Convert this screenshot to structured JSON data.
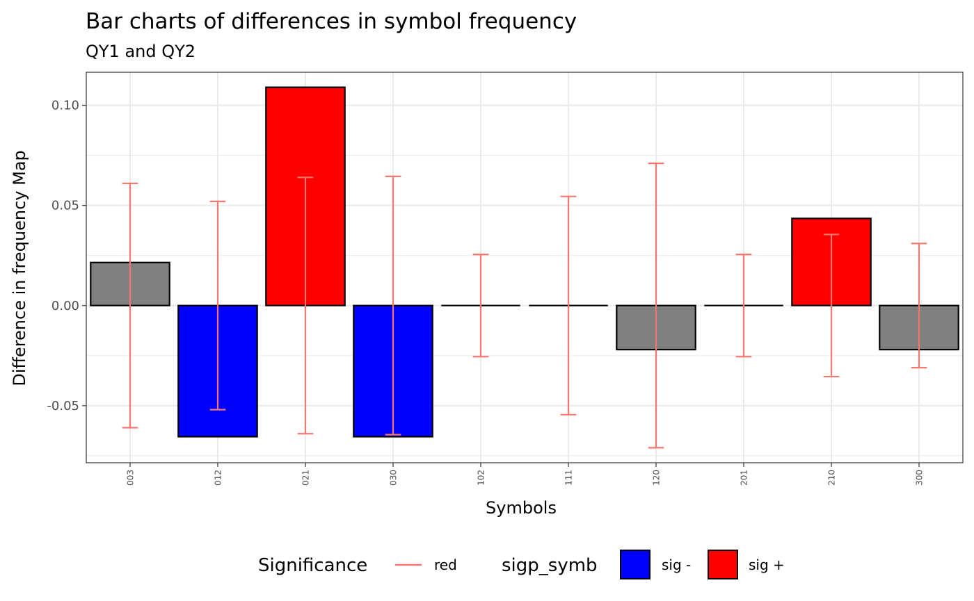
{
  "chart_data": {
    "type": "bar",
    "title": "Bar charts of differences in symbol frequency",
    "subtitle": "QY1 and QY2",
    "xlabel": "Symbols",
    "ylabel": "Difference in frequency Map",
    "ylim": [
      -0.0785,
      0.1165
    ],
    "yticks": [
      -0.05,
      0.0,
      0.05,
      0.1
    ],
    "ytick_labels": [
      "-0.05",
      "0.00",
      "0.05",
      "0.10"
    ],
    "grid": true,
    "categories": [
      "003",
      "012",
      "021",
      "030",
      "102",
      "111",
      "120",
      "201",
      "210",
      "300"
    ],
    "values": [
      0.0215,
      -0.0655,
      0.109,
      -0.0655,
      0.0,
      0.0,
      -0.022,
      0.0,
      0.0435,
      -0.022
    ],
    "significance": [
      "none",
      "sig -",
      "sig +",
      "sig -",
      "none",
      "none",
      "none",
      "none",
      "sig +",
      "none"
    ],
    "error_bounds": [
      0.061,
      0.052,
      0.064,
      0.0645,
      0.0255,
      0.0545,
      0.071,
      0.0255,
      0.0355,
      0.031
    ],
    "colors": {
      "sig -": "#0000ff",
      "sig +": "#ff0000",
      "none": "#808080",
      "error_bar": "#f8766d",
      "grid": "#ebebeb",
      "panel_border": "#333333"
    },
    "legend": {
      "placement": "bottom",
      "significance_title": "Significance",
      "significance_label": "red",
      "fill_title": "sigp_symb",
      "fill_labels": [
        "sig -",
        "sig +"
      ]
    }
  }
}
